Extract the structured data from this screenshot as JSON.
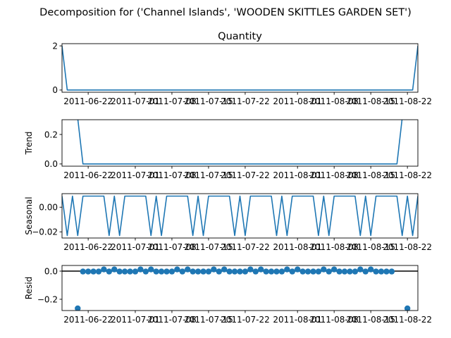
{
  "figure": {
    "suptitle": "Decomposition for ('Channel Islands', 'WOODEN SKITTLES GARDEN SET')",
    "colors": {
      "line": "#1f77b4",
      "marker": "#1f77b4",
      "axes": "#000000",
      "zero_line": "#000000"
    }
  },
  "chart_data": [
    {
      "id": "observed",
      "type": "line",
      "title": "Quantity",
      "ylabel": "",
      "x_start": "2011-06-17",
      "x_end": "2011-08-24",
      "xticks": [
        "2011-06-22",
        "2011-07-01",
        "2011-07-08",
        "2011-07-15",
        "2011-07-22",
        "2011-08-01",
        "2011-08-08",
        "2011-08-15",
        "2011-08-22"
      ],
      "ylim": [
        -0.1,
        2.1
      ],
      "yticks": [
        "0",
        "2"
      ],
      "ytick_values": [
        0,
        2
      ],
      "points": [
        [
          "2011-06-17",
          2
        ],
        [
          "2011-06-18",
          0
        ],
        [
          "2011-08-23",
          0
        ],
        [
          "2011-08-24",
          2
        ]
      ]
    },
    {
      "id": "trend",
      "type": "line",
      "title": "",
      "ylabel": "Trend",
      "x_start": "2011-06-17",
      "x_end": "2011-08-24",
      "xticks": [
        "2011-06-22",
        "2011-07-01",
        "2011-07-08",
        "2011-07-15",
        "2011-07-22",
        "2011-08-01",
        "2011-08-08",
        "2011-08-15",
        "2011-08-22"
      ],
      "ylim": [
        -0.015,
        0.3
      ],
      "yticks": [
        "0.0",
        "0.2"
      ],
      "ytick_values": [
        0.0,
        0.2
      ],
      "points": [
        [
          "2011-06-20",
          0.31
        ],
        [
          "2011-06-21",
          0.0
        ],
        [
          "2011-08-20",
          0.0
        ],
        [
          "2011-08-21",
          0.31
        ]
      ]
    },
    {
      "id": "seasonal",
      "type": "line",
      "title": "",
      "ylabel": "Seasonal",
      "x_start": "2011-06-17",
      "x_end": "2011-08-24",
      "xticks": [
        "2011-06-22",
        "2011-07-01",
        "2011-07-08",
        "2011-07-15",
        "2011-07-22",
        "2011-08-01",
        "2011-08-08",
        "2011-08-15",
        "2011-08-22"
      ],
      "ylim": [
        -0.025,
        0.011
      ],
      "yticks": [
        "0.00",
        "−0.02"
      ],
      "ytick_values": [
        0.0,
        -0.02
      ],
      "pattern": [
        0.009,
        -0.023,
        0.009,
        -0.023,
        0.009,
        0.009,
        0.009,
        0.009
      ],
      "pattern_start": "2011-06-17"
    },
    {
      "id": "resid",
      "type": "scatter",
      "title": "",
      "ylabel": "Resid",
      "x_start": "2011-06-17",
      "x_end": "2011-08-24",
      "xticks": [
        "2011-06-22",
        "2011-07-01",
        "2011-07-08",
        "2011-07-15",
        "2011-07-22",
        "2011-08-01",
        "2011-08-08",
        "2011-08-15",
        "2011-08-22"
      ],
      "ylim": [
        -0.28,
        0.04
      ],
      "yticks": [
        "0.0",
        "−0.2"
      ],
      "ytick_values": [
        0.0,
        -0.2
      ],
      "zero_line": 0,
      "points": [
        [
          "2011-06-20",
          -0.265
        ],
        [
          "2011-06-21",
          -0.003
        ],
        [
          "2011-06-22",
          -0.003
        ],
        [
          "2011-06-23",
          -0.003
        ],
        [
          "2011-06-24",
          -0.003
        ],
        [
          "2011-06-25",
          0.012
        ],
        [
          "2011-06-26",
          -0.003
        ],
        [
          "2011-06-27",
          0.012
        ],
        [
          "2011-06-28",
          -0.003
        ],
        [
          "2011-06-29",
          -0.003
        ],
        [
          "2011-06-30",
          -0.003
        ],
        [
          "2011-07-01",
          -0.003
        ],
        [
          "2011-07-02",
          0.012
        ],
        [
          "2011-07-03",
          -0.003
        ],
        [
          "2011-07-04",
          0.012
        ],
        [
          "2011-07-05",
          -0.003
        ],
        [
          "2011-07-06",
          -0.003
        ],
        [
          "2011-07-07",
          -0.003
        ],
        [
          "2011-07-08",
          -0.003
        ],
        [
          "2011-07-09",
          0.012
        ],
        [
          "2011-07-10",
          -0.003
        ],
        [
          "2011-07-11",
          0.012
        ],
        [
          "2011-07-12",
          -0.003
        ],
        [
          "2011-07-13",
          -0.003
        ],
        [
          "2011-07-14",
          -0.003
        ],
        [
          "2011-07-15",
          -0.003
        ],
        [
          "2011-07-16",
          0.012
        ],
        [
          "2011-07-17",
          -0.003
        ],
        [
          "2011-07-18",
          0.012
        ],
        [
          "2011-07-19",
          -0.003
        ],
        [
          "2011-07-20",
          -0.003
        ],
        [
          "2011-07-21",
          -0.003
        ],
        [
          "2011-07-22",
          -0.003
        ],
        [
          "2011-07-23",
          0.012
        ],
        [
          "2011-07-24",
          -0.003
        ],
        [
          "2011-07-25",
          0.012
        ],
        [
          "2011-07-26",
          -0.003
        ],
        [
          "2011-07-27",
          -0.003
        ],
        [
          "2011-07-28",
          -0.003
        ],
        [
          "2011-07-29",
          -0.003
        ],
        [
          "2011-07-30",
          0.012
        ],
        [
          "2011-07-31",
          -0.003
        ],
        [
          "2011-08-01",
          0.012
        ],
        [
          "2011-08-02",
          -0.003
        ],
        [
          "2011-08-03",
          -0.003
        ],
        [
          "2011-08-04",
          -0.003
        ],
        [
          "2011-08-05",
          -0.003
        ],
        [
          "2011-08-06",
          0.012
        ],
        [
          "2011-08-07",
          -0.003
        ],
        [
          "2011-08-08",
          0.012
        ],
        [
          "2011-08-09",
          -0.003
        ],
        [
          "2011-08-10",
          -0.003
        ],
        [
          "2011-08-11",
          -0.003
        ],
        [
          "2011-08-12",
          -0.003
        ],
        [
          "2011-08-13",
          0.012
        ],
        [
          "2011-08-14",
          -0.003
        ],
        [
          "2011-08-15",
          0.012
        ],
        [
          "2011-08-16",
          -0.003
        ],
        [
          "2011-08-17",
          -0.003
        ],
        [
          "2011-08-18",
          -0.003
        ],
        [
          "2011-08-19",
          -0.003
        ],
        [
          "2011-08-22",
          -0.265
        ]
      ]
    }
  ]
}
